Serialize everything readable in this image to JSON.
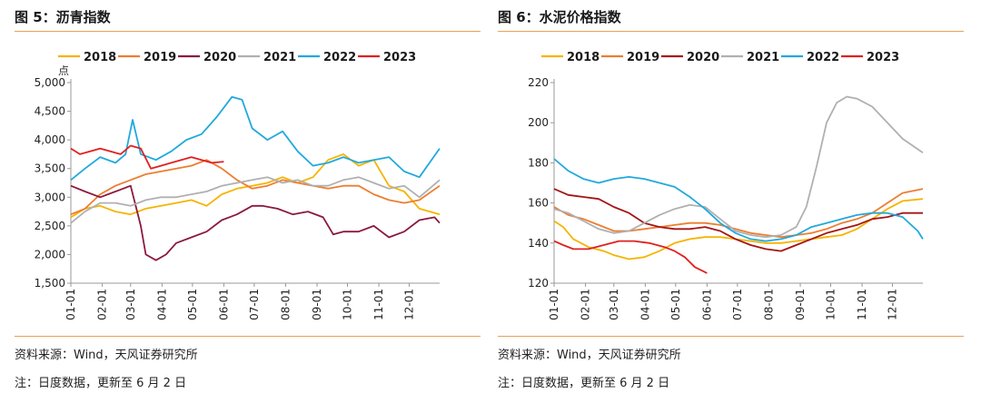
{
  "left": {
    "title": "图 5：沥青指数",
    "source": "资料来源：Wind，天风证券研究所",
    "note": "注：日度数据，更新至 6 月 2 日"
  },
  "right": {
    "title": "图 6：水泥价格指数",
    "source": "资料来源：Wind，天风证券研究所",
    "note": "注：日度数据，更新至 6 月 2 日"
  },
  "chart_data": [
    {
      "type": "line",
      "title": "沥青指数",
      "ylabel": "点",
      "ylim": [
        1500,
        5000
      ],
      "yticks": [
        1500,
        2000,
        2500,
        3000,
        3500,
        4000,
        4500,
        5000
      ],
      "ytick_labels": [
        "1,500",
        "2,000",
        "2,500",
        "3,000",
        "3,500",
        "4,000",
        "4,500",
        "5,000"
      ],
      "x_ticks": [
        "01-01",
        "02-01",
        "03-01",
        "04-01",
        "05-01",
        "06-01",
        "07-01",
        "08-01",
        "09-01",
        "10-01",
        "11-01",
        "12-01"
      ],
      "x_tick_positions": [
        1,
        32,
        60,
        91,
        121,
        152,
        182,
        213,
        244,
        274,
        305,
        335
      ],
      "xlim": [
        1,
        365
      ],
      "legend_position": "top",
      "grid": false,
      "series": [
        {
          "name": "2018",
          "color": "#f5b400",
          "x": [
            1,
            15,
            30,
            45,
            60,
            75,
            90,
            105,
            120,
            135,
            150,
            165,
            180,
            195,
            210,
            225,
            240,
            255,
            270,
            285,
            300,
            315,
            330,
            345,
            365
          ],
          "y": [
            2650,
            2800,
            2850,
            2750,
            2700,
            2800,
            2850,
            2900,
            2950,
            2850,
            3050,
            3150,
            3200,
            3250,
            3350,
            3250,
            3350,
            3650,
            3750,
            3550,
            3650,
            3200,
            3100,
            2800,
            2700
          ]
        },
        {
          "name": "2019",
          "color": "#ed7d31",
          "x": [
            1,
            15,
            30,
            45,
            60,
            75,
            90,
            105,
            120,
            135,
            150,
            165,
            180,
            195,
            210,
            225,
            240,
            255,
            270,
            285,
            300,
            315,
            330,
            345,
            365
          ],
          "y": [
            2700,
            2800,
            3050,
            3200,
            3300,
            3400,
            3450,
            3500,
            3550,
            3650,
            3500,
            3300,
            3150,
            3200,
            3300,
            3250,
            3200,
            3150,
            3200,
            3200,
            3050,
            2950,
            2900,
            2950,
            3200
          ]
        },
        {
          "name": "2020",
          "color": "#8b1a3c",
          "x": [
            1,
            15,
            30,
            45,
            60,
            70,
            75,
            85,
            95,
            105,
            120,
            135,
            150,
            165,
            180,
            190,
            205,
            220,
            235,
            250,
            260,
            270,
            285,
            300,
            315,
            330,
            345,
            360,
            365
          ],
          "y": [
            3200,
            3100,
            3000,
            3100,
            3200,
            2500,
            2000,
            1900,
            2000,
            2200,
            2300,
            2400,
            2600,
            2700,
            2850,
            2850,
            2800,
            2700,
            2750,
            2650,
            2350,
            2400,
            2400,
            2500,
            2300,
            2400,
            2600,
            2650,
            2550
          ]
        },
        {
          "name": "2021",
          "color": "#b0b0b0",
          "x": [
            1,
            15,
            30,
            45,
            60,
            75,
            90,
            105,
            120,
            135,
            150,
            165,
            180,
            195,
            210,
            225,
            240,
            255,
            270,
            285,
            300,
            315,
            330,
            345,
            365
          ],
          "y": [
            2550,
            2750,
            2900,
            2900,
            2850,
            2950,
            3000,
            3000,
            3050,
            3100,
            3200,
            3250,
            3300,
            3350,
            3250,
            3300,
            3200,
            3200,
            3300,
            3350,
            3250,
            3150,
            3200,
            3000,
            3300
          ]
        },
        {
          "name": "2022",
          "color": "#21a9dd",
          "x": [
            1,
            15,
            30,
            45,
            55,
            62,
            70,
            85,
            100,
            115,
            130,
            145,
            160,
            170,
            180,
            195,
            210,
            225,
            240,
            255,
            270,
            285,
            300,
            315,
            330,
            345,
            365
          ],
          "y": [
            3300,
            3500,
            3700,
            3600,
            3750,
            4350,
            3750,
            3650,
            3800,
            4000,
            4100,
            4400,
            4750,
            4700,
            4200,
            4000,
            4150,
            3800,
            3550,
            3600,
            3700,
            3600,
            3650,
            3700,
            3450,
            3350,
            3850
          ]
        },
        {
          "name": "2023",
          "color": "#e02020",
          "x": [
            1,
            10,
            20,
            30,
            40,
            50,
            60,
            70,
            80,
            90,
            100,
            110,
            120,
            130,
            140,
            152
          ],
          "y": [
            3850,
            3750,
            3800,
            3850,
            3800,
            3750,
            3900,
            3850,
            3500,
            3550,
            3600,
            3650,
            3700,
            3650,
            3600,
            3620
          ]
        }
      ]
    },
    {
      "type": "line",
      "title": "水泥价格指数",
      "ylim": [
        120,
        220
      ],
      "yticks": [
        120,
        140,
        160,
        180,
        200,
        220
      ],
      "ytick_labels": [
        "120",
        "140",
        "160",
        "180",
        "200",
        "220"
      ],
      "x_ticks": [
        "01-01",
        "02-01",
        "03-01",
        "04-01",
        "05-01",
        "06-01",
        "07-01",
        "08-01",
        "09-01",
        "10-01",
        "11-01",
        "12-01"
      ],
      "x_tick_positions": [
        1,
        32,
        60,
        91,
        121,
        152,
        182,
        213,
        244,
        274,
        305,
        335
      ],
      "xlim": [
        1,
        365
      ],
      "legend_position": "top",
      "grid": false,
      "series": [
        {
          "name": "2018",
          "color": "#f5b400",
          "x": [
            1,
            10,
            20,
            35,
            50,
            60,
            75,
            90,
            105,
            120,
            135,
            150,
            165,
            180,
            195,
            210,
            225,
            240,
            255,
            270,
            285,
            300,
            315,
            330,
            345,
            365
          ],
          "y": [
            151,
            148,
            142,
            138,
            136,
            134,
            132,
            133,
            136,
            140,
            142,
            143,
            143,
            142,
            141,
            140,
            140,
            141,
            142,
            143,
            144,
            147,
            152,
            157,
            161,
            162
          ]
        },
        {
          "name": "2019",
          "color": "#ed7d31",
          "x": [
            1,
            15,
            30,
            45,
            60,
            75,
            90,
            105,
            120,
            135,
            150,
            165,
            180,
            195,
            210,
            225,
            240,
            255,
            270,
            285,
            300,
            315,
            330,
            345,
            365
          ],
          "y": [
            158,
            154,
            152,
            149,
            146,
            146,
            147,
            148,
            149,
            150,
            150,
            149,
            147,
            145,
            144,
            143,
            144,
            145,
            147,
            150,
            152,
            155,
            160,
            165,
            167
          ]
        },
        {
          "name": "2020",
          "color": "#a31515",
          "x": [
            1,
            15,
            30,
            45,
            60,
            75,
            90,
            105,
            120,
            135,
            150,
            165,
            180,
            195,
            210,
            225,
            240,
            255,
            270,
            285,
            300,
            315,
            330,
            345,
            365
          ],
          "y": [
            167,
            164,
            163,
            162,
            158,
            155,
            150,
            148,
            147,
            147,
            148,
            146,
            142,
            139,
            137,
            136,
            139,
            142,
            145,
            147,
            149,
            152,
            153,
            155,
            155
          ]
        },
        {
          "name": "2021",
          "color": "#b0b0b0",
          "x": [
            1,
            15,
            30,
            45,
            60,
            75,
            90,
            105,
            120,
            135,
            150,
            165,
            180,
            195,
            210,
            225,
            240,
            250,
            260,
            270,
            280,
            290,
            300,
            315,
            330,
            345,
            365
          ],
          "y": [
            157,
            155,
            151,
            147,
            145,
            146,
            150,
            154,
            157,
            159,
            158,
            152,
            146,
            144,
            143,
            144,
            148,
            158,
            178,
            200,
            210,
            213,
            212,
            208,
            200,
            192,
            185
          ]
        },
        {
          "name": "2022",
          "color": "#21a9dd",
          "x": [
            1,
            15,
            30,
            45,
            60,
            75,
            90,
            105,
            120,
            135,
            150,
            165,
            180,
            195,
            210,
            225,
            240,
            255,
            270,
            285,
            300,
            315,
            330,
            345,
            360,
            365
          ],
          "y": [
            182,
            176,
            172,
            170,
            172,
            173,
            172,
            170,
            168,
            163,
            157,
            150,
            145,
            142,
            141,
            142,
            144,
            148,
            150,
            152,
            154,
            155,
            155,
            153,
            146,
            142
          ]
        },
        {
          "name": "2023",
          "color": "#e02020",
          "x": [
            1,
            10,
            20,
            35,
            50,
            65,
            80,
            95,
            110,
            120,
            130,
            140,
            152
          ],
          "y": [
            141,
            139,
            137,
            137,
            139,
            141,
            141,
            140,
            138,
            136,
            133,
            128,
            125
          ]
        }
      ]
    }
  ]
}
